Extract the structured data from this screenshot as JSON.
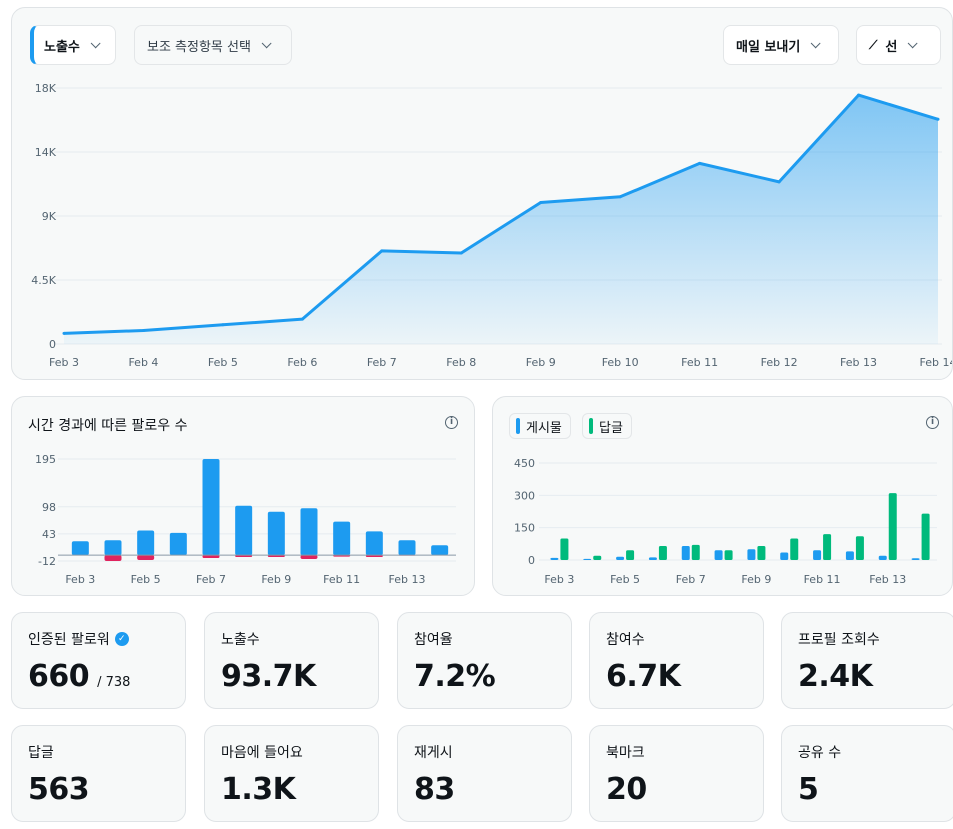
{
  "toolbar": {
    "metric_label": "노출수",
    "secondary_label": "보조 측정항목 선택",
    "send_label": "매일 보내기",
    "chart_type_label": "선",
    "chart_type_glyph": "⟋"
  },
  "colors": {
    "accent": "#1d9bf0",
    "negative": "#e0245e",
    "replies": "#00ba7c",
    "grid": "#e6ecf0"
  },
  "main_chart": {
    "chart_data": {
      "type": "area",
      "x": [
        "Feb 3",
        "Feb 4",
        "Feb 5",
        "Feb 6",
        "Feb 7",
        "Feb 8",
        "Feb 9",
        "Feb 10",
        "Feb 11",
        "Feb 12",
        "Feb 13",
        "Feb 14"
      ],
      "values": [
        750,
        950,
        1350,
        1750,
        6550,
        6400,
        9950,
        10350,
        12700,
        11400,
        17500,
        15800
      ],
      "y_ticks": [
        "0",
        "4.5K",
        "9K",
        "14K",
        "18K"
      ],
      "y_tick_values": [
        0,
        4500,
        9000,
        13500,
        18000
      ],
      "ylim": [
        0,
        18000
      ],
      "series_color": "#1d9bf0"
    }
  },
  "followers_chart": {
    "title": "시간 경과에 따른 팔로우 수",
    "chart_data": {
      "type": "bar",
      "categories": [
        "Feb 3",
        "Feb 4",
        "Feb 5",
        "Feb 6",
        "Feb 7",
        "Feb 8",
        "Feb 9",
        "Feb 10",
        "Feb 11",
        "Feb 12",
        "Feb 13",
        "Feb 14"
      ],
      "x_tick_labels": [
        "Feb 3",
        "",
        "Feb 5",
        "",
        "Feb 7",
        "",
        "Feb 9",
        "",
        "Feb 11",
        "",
        "Feb 13",
        ""
      ],
      "series": [
        {
          "values": [
            28,
            30,
            50,
            45,
            195,
            100,
            88,
            95,
            68,
            48,
            30,
            20
          ]
        },
        {
          "values": [
            0,
            -12,
            -10,
            0,
            -6,
            -4,
            -4,
            -8,
            -3,
            -4,
            -1,
            0
          ]
        }
      ],
      "y_ticks": [
        "-12",
        "43",
        "98",
        "195"
      ],
      "y_tick_values": [
        -12,
        43,
        98,
        195
      ],
      "ylim": [
        -12,
        195
      ]
    }
  },
  "posts_chart": {
    "legend": [
      "게시물",
      "답글"
    ],
    "chart_data": {
      "type": "bar",
      "categories": [
        "Feb 3",
        "Feb 4",
        "Feb 5",
        "Feb 6",
        "Feb 7",
        "Feb 8",
        "Feb 9",
        "Feb 10",
        "Feb 11",
        "Feb 12",
        "Feb 13",
        "Feb 14"
      ],
      "x_tick_labels": [
        "Feb 3",
        "",
        "Feb 5",
        "",
        "Feb 7",
        "",
        "Feb 9",
        "",
        "Feb 11",
        "",
        "Feb 13",
        ""
      ],
      "series": [
        {
          "name": "게시물",
          "values": [
            10,
            5,
            15,
            12,
            65,
            45,
            50,
            35,
            45,
            40,
            20,
            8
          ]
        },
        {
          "name": "답글",
          "values": [
            100,
            20,
            45,
            65,
            70,
            45,
            65,
            100,
            120,
            110,
            310,
            215
          ]
        }
      ],
      "y_ticks": [
        "0",
        "150",
        "300",
        "450"
      ],
      "y_tick_values": [
        0,
        150,
        300,
        450
      ],
      "ylim": [
        0,
        450
      ]
    }
  },
  "stats": [
    {
      "label": "인증된 팔로워",
      "value": "660",
      "sub": "/ 738",
      "verified": "✓"
    },
    {
      "label": "노출수",
      "value": "93.7K"
    },
    {
      "label": "참여율",
      "value": "7.2%"
    },
    {
      "label": "참여수",
      "value": "6.7K"
    },
    {
      "label": "프로필 조회수",
      "value": "2.4K"
    },
    {
      "label": "답글",
      "value": "563"
    },
    {
      "label": "마음에 들어요",
      "value": "1.3K"
    },
    {
      "label": "재게시",
      "value": "83"
    },
    {
      "label": "북마크",
      "value": "20"
    },
    {
      "label": "공유 수",
      "value": "5"
    }
  ]
}
